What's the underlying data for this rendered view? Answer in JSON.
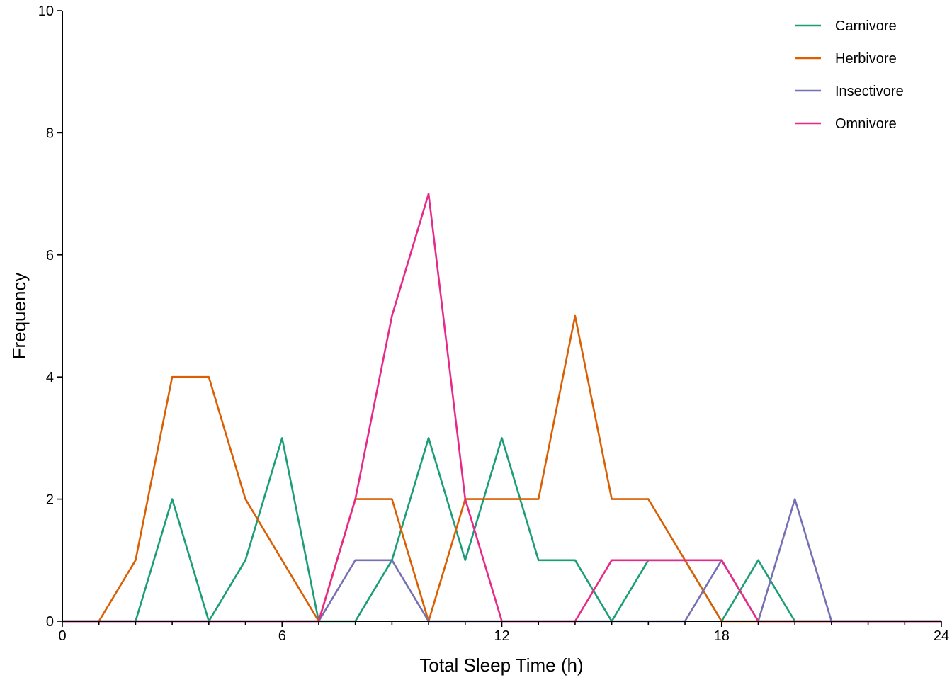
{
  "chart_data": {
    "type": "line",
    "xlabel": "Total Sleep Time (h)",
    "ylabel": "Frequency",
    "xlim": [
      0,
      24
    ],
    "ylim": [
      0,
      10
    ],
    "x_ticks": [
      0,
      6,
      12,
      18,
      24
    ],
    "y_ticks": [
      0,
      2,
      4,
      6,
      8,
      10
    ],
    "x_minor_step": 1,
    "grid": false,
    "legend_position": "top-right",
    "x": [
      0,
      1,
      2,
      3,
      4,
      5,
      6,
      7,
      8,
      9,
      10,
      11,
      12,
      13,
      14,
      15,
      16,
      17,
      18,
      19,
      20,
      21,
      22,
      23,
      24
    ],
    "series": [
      {
        "name": "Carnivore",
        "color": "#1b9e77",
        "values": [
          0,
          0,
          0,
          2,
          0,
          1,
          3,
          0,
          0,
          1,
          3,
          1,
          3,
          1,
          1,
          0,
          1,
          1,
          0,
          1,
          0,
          0,
          0,
          0,
          0
        ]
      },
      {
        "name": "Herbivore",
        "color": "#d95f02",
        "values": [
          0,
          0,
          1,
          4,
          4,
          2,
          1,
          0,
          2,
          2,
          0,
          2,
          2,
          2,
          5,
          2,
          2,
          1,
          0,
          0,
          0,
          0,
          0,
          0,
          0
        ]
      },
      {
        "name": "Insectivore",
        "color": "#7570b3",
        "values": [
          0,
          0,
          0,
          0,
          0,
          0,
          0,
          0,
          1,
          1,
          0,
          0,
          0,
          0,
          0,
          0,
          0,
          0,
          1,
          0,
          2,
          0,
          0,
          0,
          0
        ]
      },
      {
        "name": "Omnivore",
        "color": "#e7298a",
        "values": [
          0,
          0,
          0,
          0,
          0,
          0,
          0,
          0,
          2,
          5,
          7,
          2,
          0,
          0,
          0,
          1,
          1,
          1,
          1,
          0,
          0,
          0,
          0,
          0,
          0
        ]
      }
    ]
  }
}
